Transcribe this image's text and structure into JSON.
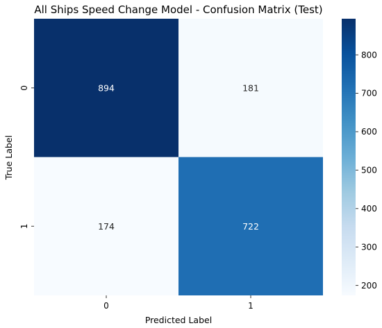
{
  "chart_data": {
    "type": "heatmap",
    "title": "All Ships Speed Change Model - Confusion Matrix (Test)",
    "xlabel": "Predicted Label",
    "ylabel": "True Label",
    "x_categories": [
      "0",
      "1"
    ],
    "y_categories": [
      "0",
      "1"
    ],
    "values": [
      [
        894,
        181
      ],
      [
        174,
        722
      ]
    ],
    "colorbar": {
      "range": [
        174,
        894
      ],
      "ticks": [
        200,
        300,
        400,
        500,
        600,
        700,
        800
      ],
      "colormap": "Blues",
      "low_color": "#f7fbff",
      "high_color": "#08306b"
    },
    "grid": false
  }
}
